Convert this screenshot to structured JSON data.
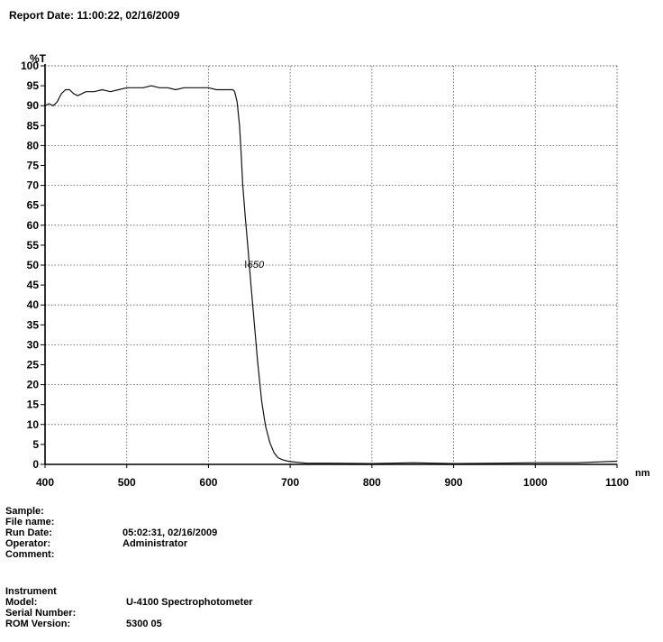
{
  "report": {
    "date_line": "Report Date: 11:00:22, 02/16/2009"
  },
  "chart_data": {
    "type": "line",
    "ylabel": "%T",
    "xlabel": "nm",
    "xlim": [
      400,
      1100
    ],
    "ylim": [
      0,
      100
    ],
    "x_ticks": [
      "400",
      "500",
      "600",
      "700",
      "800",
      "900",
      "1000",
      "1100"
    ],
    "y_ticks": [
      "0",
      "5",
      "10",
      "15",
      "20",
      "25",
      "30",
      "35",
      "40",
      "45",
      "50",
      "55",
      "60",
      "65",
      "70",
      "75",
      "80",
      "85",
      "90",
      "95",
      "100"
    ],
    "grid": true,
    "annotation": {
      "text": "650",
      "x": 650,
      "y": 50
    },
    "series": [
      {
        "x": [
          400,
          405,
          410,
          415,
          420,
          425,
          430,
          435,
          440,
          445,
          450,
          460,
          470,
          480,
          490,
          500,
          510,
          520,
          530,
          540,
          550,
          560,
          570,
          580,
          590,
          600,
          610,
          620,
          625,
          630,
          632,
          635,
          638,
          640,
          642,
          645,
          648,
          650,
          652,
          655,
          658,
          660,
          663,
          665,
          668,
          670,
          675,
          680,
          685,
          690,
          695,
          700,
          710,
          720,
          750,
          800,
          850,
          900,
          950,
          1000,
          1050,
          1100
        ],
        "y": [
          90,
          90.5,
          90,
          91,
          93,
          94,
          94,
          93,
          92.5,
          93,
          93.5,
          93.5,
          94,
          93.5,
          94,
          94.5,
          94.5,
          94.5,
          95,
          94.5,
          94.5,
          94,
          94.5,
          94.5,
          94.5,
          94.5,
          94,
          94,
          94,
          94,
          93.5,
          91,
          85,
          78,
          70,
          62,
          55,
          50,
          45,
          38,
          31,
          26,
          20,
          16,
          12,
          9.5,
          5.5,
          3,
          1.7,
          1.2,
          0.9,
          0.7,
          0.5,
          0.3,
          0.3,
          0.2,
          0.4,
          0.2,
          0.3,
          0.4,
          0.4,
          0.8
        ]
      }
    ]
  },
  "sample_info": [
    {
      "label": "Sample:",
      "value": ""
    },
    {
      "label": "File name:",
      "value": ""
    },
    {
      "label": "Run Date:",
      "value": "05:02:31, 02/16/2009"
    },
    {
      "label": "Operator:",
      "value": "Administrator"
    },
    {
      "label": "Comment:",
      "value": ""
    }
  ],
  "instrument_info": [
    {
      "label": "Instrument",
      "value": ""
    },
    {
      "label": "Model:",
      "value": "U-4100 Spectrophotometer"
    },
    {
      "label": "Serial Number:",
      "value": ""
    },
    {
      "label": "ROM Version:",
      "value": "5300 05"
    }
  ]
}
